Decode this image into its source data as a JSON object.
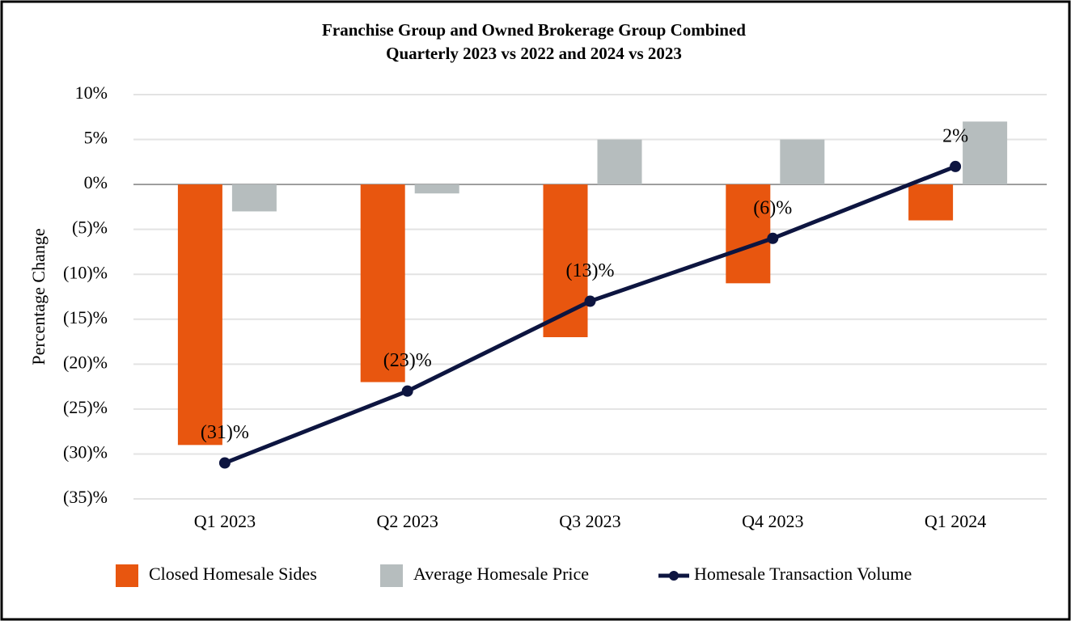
{
  "chart_data": {
    "type": "bar",
    "title": "Franchise Group and Owned Brokerage Group Combined",
    "subtitle": "Quarterly 2023 vs 2022 and 2024 vs 2023",
    "y_label": "Percentage Change",
    "categories": [
      "Q1 2023",
      "Q2 2023",
      "Q3 2023",
      "Q4 2023",
      "Q1 2024"
    ],
    "series": [
      {
        "name": "Closed Homesale Sides",
        "type": "bar",
        "color": "#e8560f",
        "values": [
          -29,
          -22,
          -17,
          -11,
          -4
        ]
      },
      {
        "name": "Average Homesale Price",
        "type": "bar",
        "color": "#b6bdbe",
        "values": [
          -3,
          -1,
          5,
          5,
          7
        ]
      },
      {
        "name": "Homesale Transaction Volume",
        "type": "line",
        "color": "#0d1540",
        "values": [
          -31,
          -23,
          -13,
          -6,
          2
        ],
        "value_labels": [
          "(31)%",
          "(23)%",
          "(13)%",
          "(6)%",
          "2%"
        ]
      }
    ],
    "ylim": [
      -35,
      10
    ],
    "yticks": [
      {
        "value": 10,
        "label": "10%"
      },
      {
        "value": 5,
        "label": "5%"
      },
      {
        "value": 0,
        "label": "0%"
      },
      {
        "value": -5,
        "label": "(5)%"
      },
      {
        "value": -10,
        "label": "(10)%"
      },
      {
        "value": -15,
        "label": "(15)%"
      },
      {
        "value": -20,
        "label": "(20)%"
      },
      {
        "value": -25,
        "label": "(25)%"
      },
      {
        "value": -30,
        "label": "(30)%"
      },
      {
        "value": -35,
        "label": "(35)%"
      }
    ],
    "grid": true,
    "legend": "bottom"
  }
}
